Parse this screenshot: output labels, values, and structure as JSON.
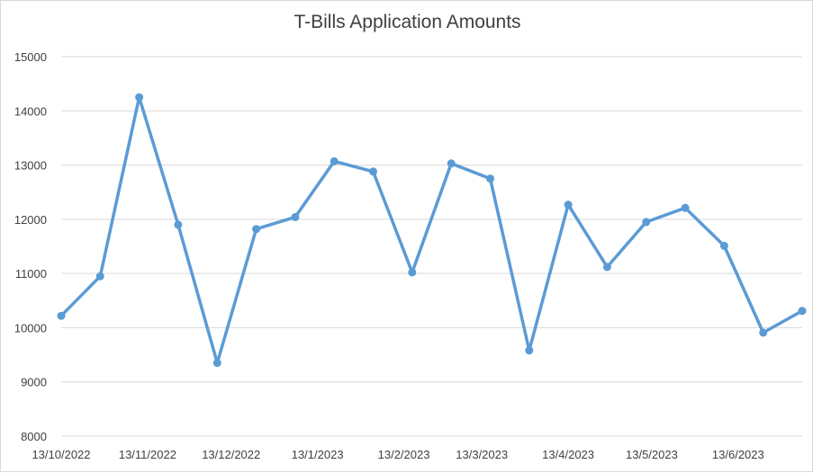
{
  "chart_data": {
    "type": "line",
    "title": "T-Bills Application Amounts",
    "xlabel": "",
    "ylabel": "",
    "x": [
      "13/10/2022",
      "27/10/2022",
      "10/11/2022",
      "24/11/2022",
      "8/12/2022",
      "22/12/2022",
      "5/1/2023",
      "19/1/2023",
      "2/2/2023",
      "16/2/2023",
      "2/3/2023",
      "16/3/2023",
      "30/3/2023",
      "13/4/2023",
      "27/4/2023",
      "11/5/2023",
      "25/5/2023",
      "8/6/2023",
      "22/6/2023",
      "6/7/2023"
    ],
    "x_dates_iso": [
      "2022-10-13",
      "2022-10-27",
      "2022-11-10",
      "2022-11-24",
      "2022-12-08",
      "2022-12-22",
      "2023-01-05",
      "2023-01-19",
      "2023-02-02",
      "2023-02-16",
      "2023-03-02",
      "2023-03-16",
      "2023-03-30",
      "2023-04-13",
      "2023-04-27",
      "2023-05-11",
      "2023-05-25",
      "2023-06-08",
      "2023-06-22",
      "2023-07-06"
    ],
    "series": [
      {
        "values": [
          10220,
          10950,
          14250,
          11900,
          9350,
          11820,
          12040,
          13070,
          12880,
          11020,
          13030,
          12750,
          9580,
          12270,
          11120,
          11950,
          12210,
          11510,
          9910,
          10310
        ],
        "color": "#5b9bd5"
      }
    ],
    "x_tick_labels": [
      "13/10/2022",
      "13/11/2022",
      "13/12/2022",
      "13/1/2023",
      "13/2/2023",
      "13/3/2023",
      "13/4/2023",
      "13/5/2023",
      "13/6/2023"
    ],
    "x_ticks_iso": [
      "2022-10-13",
      "2022-11-13",
      "2022-12-13",
      "2023-01-13",
      "2023-02-13",
      "2023-03-13",
      "2023-04-13",
      "2023-05-13",
      "2023-06-13"
    ],
    "x_range_iso": [
      "2022-10-13",
      "2023-07-06"
    ],
    "y_ticks": [
      8000,
      9000,
      10000,
      11000,
      12000,
      13000,
      14000,
      15000
    ],
    "ylim": [
      8000,
      15000
    ],
    "grid": "horizontal",
    "legend": "none",
    "colors": {
      "line": "#5b9bd5",
      "grid": "#d9d9d9",
      "text": "#404040"
    }
  }
}
